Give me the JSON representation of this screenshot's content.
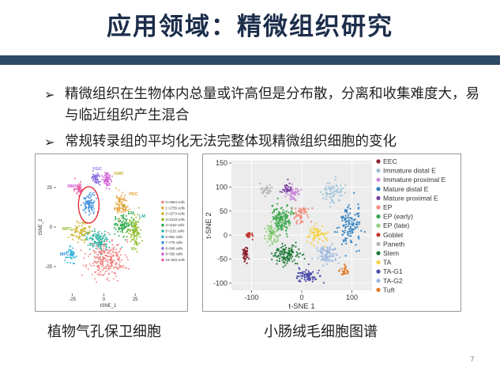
{
  "slide": {
    "title": "应用领域：精微组织研究",
    "bullets": [
      "精微组织在生物体内总量或许高但是分布散，分离和收集难度大，易与临近组织产生混合",
      "常规转录组的平均化无法完整体现精微组织细胞的变化"
    ],
    "captions": {
      "left": "植物气孔保卫细胞",
      "right": "小肠绒毛细胞图谱"
    },
    "page_number": "7"
  },
  "colors": {
    "title_bar": "#2f4a66",
    "title_text": "#1b2d4a",
    "highlight_circle": "#e0202a"
  },
  "chart_data": [
    {
      "type": "scatter",
      "xlabel": "tSNE_1",
      "ylabel": "tSNE_2",
      "x_ticks": [
        -25,
        0,
        25
      ],
      "y_ticks": [
        25,
        0,
        -25
      ],
      "xlim": [
        -38,
        45
      ],
      "ylim": [
        -42,
        42
      ],
      "cluster_labels": [
        "YGC",
        "GMC",
        "MMC",
        "GC",
        "PDC",
        "EM",
        "LM",
        "MPC",
        "MPC_2",
        "PC"
      ],
      "legend": [
        "0~2684 cells",
        "1~1755 cells",
        "2~1573 cells",
        "3~1233 cells",
        "4~1152 cells",
        "5~1151 cells",
        "6~951 cells",
        "7~776 cells",
        "8~668 cells",
        "9~336 cells",
        "10~283 cells"
      ],
      "legend_colors": [
        "#f08080",
        "#e8a33a",
        "#c9b22a",
        "#8dbb2a",
        "#2eaa4a",
        "#2ab3a0",
        "#27b4d8",
        "#3d8fdc",
        "#8a6fe0",
        "#d35ed6",
        "#e859a6"
      ],
      "clusters": [
        {
          "label": "PC",
          "center": [
            2,
            -20
          ],
          "spread": [
            12,
            10
          ],
          "color": "#f08080",
          "n": 260
        },
        {
          "label": "PDC",
          "center": [
            14,
            14
          ],
          "spread": [
            4,
            6
          ],
          "color": "#e8a33a",
          "n": 90
        },
        {
          "label": "LM",
          "center": [
            24,
            -2
          ],
          "spread": [
            5,
            9
          ],
          "color": "#8dbb2a",
          "n": 110
        },
        {
          "label": "EM",
          "center": [
            15,
            2
          ],
          "spread": [
            5,
            6
          ],
          "color": "#2eaa4a",
          "n": 90
        },
        {
          "label": "MPC",
          "center": [
            -18,
            -3
          ],
          "spread": [
            6,
            5
          ],
          "color": "#c9b22a",
          "n": 90
        },
        {
          "label": "MPC_2",
          "center": [
            -5,
            -8
          ],
          "spread": [
            7,
            5
          ],
          "color": "#2ab3a0",
          "n": 110
        },
        {
          "label": "GC",
          "center": [
            -12,
            14
          ],
          "spread": [
            4,
            5
          ],
          "color": "#3d8fdc",
          "n": 80
        },
        {
          "label": "YGC",
          "center": [
            -6,
            31
          ],
          "spread": [
            3,
            3
          ],
          "color": "#8a6fe0",
          "n": 50
        },
        {
          "label": "GMC",
          "center": [
            3,
            30
          ],
          "spread": [
            3,
            4
          ],
          "color": "#d35ed6",
          "n": 60
        },
        {
          "label": "MMC",
          "center": [
            -20,
            24
          ],
          "spread": [
            3,
            3
          ],
          "color": "#e859a6",
          "n": 40
        },
        {
          "label": "",
          "center": [
            -26,
            -18
          ],
          "spread": [
            3,
            4
          ],
          "color": "#27b4d8",
          "n": 40
        }
      ]
    },
    {
      "type": "scatter",
      "xlabel": "t-SNE 1",
      "ylabel": "t-SNE 2",
      "x_ticks": [
        -100,
        0,
        100
      ],
      "y_ticks": [
        150,
        100,
        50,
        0,
        -50,
        -100
      ],
      "xlim": [
        -140,
        140
      ],
      "ylim": [
        -115,
        155
      ],
      "legend": [
        "EEC",
        "Immature distal E",
        "Immature proximal E",
        "Mature distal E",
        "Mature proximal E",
        "EP",
        "EP (early)",
        "EP (late)",
        "Goblet",
        "Paneth",
        "Stem",
        "TA",
        "TA-G1",
        "TA-G2",
        "Tuft"
      ],
      "legend_colors": [
        "#8a1e2a",
        "#9ec3d8",
        "#c98ad9",
        "#2f7fc1",
        "#7a3fa0",
        "#f08a7a",
        "#3aa64a",
        "#8fcf7a",
        "#c2362e",
        "#b5b5b5",
        "#1f7a3a",
        "#f5d142",
        "#4a4aa8",
        "#9ab6e0",
        "#e07a2a"
      ],
      "clusters": [
        {
          "label": "EEC",
          "center": [
            -113,
            -40
          ],
          "spread": [
            6,
            12
          ],
          "color": "#8a1e2a",
          "n": 40
        },
        {
          "label": "Goblet",
          "center": [
            -105,
            0
          ],
          "spread": [
            5,
            6
          ],
          "color": "#c2362e",
          "n": 25
        },
        {
          "label": "Immature distal E",
          "center": [
            60,
            90
          ],
          "spread": [
            18,
            20
          ],
          "color": "#9ec3d8",
          "n": 70
        },
        {
          "label": "Immature proximal E",
          "center": [
            -20,
            88
          ],
          "spread": [
            12,
            12
          ],
          "color": "#c98ad9",
          "n": 50
        },
        {
          "label": "Mature distal E",
          "center": [
            95,
            20
          ],
          "spread": [
            18,
            35
          ],
          "color": "#2f7fc1",
          "n": 120
        },
        {
          "label": "Mature proximal E",
          "center": [
            -30,
            95
          ],
          "spread": [
            8,
            10
          ],
          "color": "#7a3fa0",
          "n": 30
        },
        {
          "label": "EP",
          "center": [
            0,
            40
          ],
          "spread": [
            14,
            18
          ],
          "color": "#f08a7a",
          "n": 60
        },
        {
          "label": "EP (early)",
          "center": [
            -40,
            35
          ],
          "spread": [
            18,
            28
          ],
          "color": "#3aa64a",
          "n": 140
        },
        {
          "label": "EP (late)",
          "center": [
            -60,
            0
          ],
          "spread": [
            12,
            20
          ],
          "color": "#8fcf7a",
          "n": 60
        },
        {
          "label": "Paneth",
          "center": [
            -70,
            95
          ],
          "spread": [
            10,
            8
          ],
          "color": "#b5b5b5",
          "n": 30
        },
        {
          "label": "Stem",
          "center": [
            -30,
            -40
          ],
          "spread": [
            22,
            16
          ],
          "color": "#1f7a3a",
          "n": 130
        },
        {
          "label": "TA",
          "center": [
            30,
            0
          ],
          "spread": [
            14,
            14
          ],
          "color": "#f5d142",
          "n": 70
        },
        {
          "label": "TA-G1",
          "center": [
            10,
            -85
          ],
          "spread": [
            20,
            10
          ],
          "color": "#4a4aa8",
          "n": 80
        },
        {
          "label": "TA-G2",
          "center": [
            50,
            -40
          ],
          "spread": [
            18,
            16
          ],
          "color": "#9ab6e0",
          "n": 80
        },
        {
          "label": "Tuft",
          "center": [
            85,
            -75
          ],
          "spread": [
            8,
            8
          ],
          "color": "#e07a2a",
          "n": 30
        }
      ]
    }
  ]
}
